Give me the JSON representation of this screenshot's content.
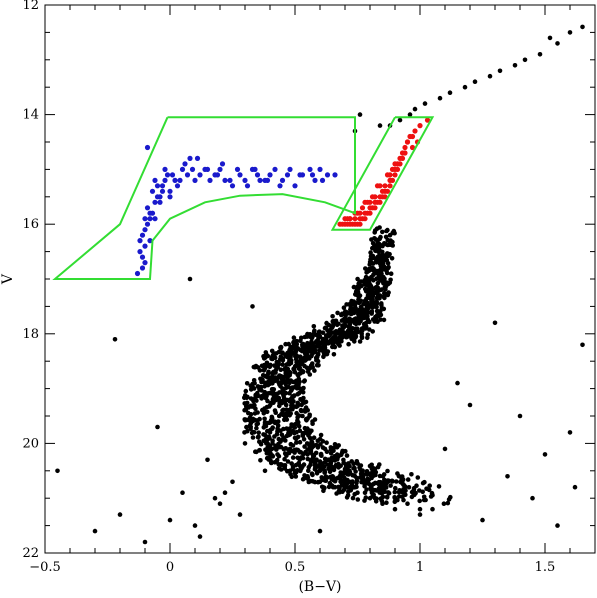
{
  "chart_data": {
    "type": "scatter",
    "title": "",
    "xlabel": "(B−V)",
    "ylabel": "V",
    "xlim": [
      -0.5,
      1.7
    ],
    "ylim": [
      22,
      12
    ],
    "y_inverted": true,
    "grid": false,
    "legend": "none",
    "x_major_ticks": [
      -0.5,
      0,
      0.5,
      1,
      1.5
    ],
    "x_tick_labels": [
      "−0.5",
      "0",
      "0.5",
      "1",
      "1.5"
    ],
    "y_major_ticks": [
      12,
      14,
      16,
      18,
      20,
      22
    ],
    "y_tick_labels": [
      "12",
      "14",
      "16",
      "18",
      "20",
      "22"
    ],
    "colors": {
      "field": "#000000",
      "horizontal_branch": "#1a1acc",
      "red_giant_branch": "#ee1111",
      "selection_box": "#33dd33"
    },
    "selection_regions": [
      {
        "name": "horizontal-branch-box",
        "outline": [
          [
            -0.01,
            14.05
          ],
          [
            0.74,
            14.05
          ],
          [
            0.74,
            15.8
          ],
          [
            0.62,
            15.6
          ],
          [
            0.45,
            15.45
          ],
          [
            0.28,
            15.48
          ],
          [
            0.14,
            15.6
          ],
          [
            0.0,
            15.9
          ],
          [
            -0.07,
            16.3
          ],
          [
            -0.08,
            17.0
          ],
          [
            -0.46,
            17.0
          ],
          [
            -0.2,
            16.0
          ],
          [
            -0.01,
            14.05
          ]
        ]
      },
      {
        "name": "red-giant-branch-box",
        "outline": [
          [
            0.9,
            14.05
          ],
          [
            1.05,
            14.05
          ],
          [
            0.8,
            16.1
          ],
          [
            0.65,
            16.1
          ],
          [
            0.9,
            14.05
          ]
        ]
      }
    ],
    "series": [
      {
        "name": "",
        "color_key": "horizontal_branch",
        "x": [
          -0.13,
          -0.11,
          -0.1,
          -0.12,
          -0.1,
          -0.09,
          -0.11,
          -0.08,
          -0.07,
          -0.09,
          -0.1,
          -0.06,
          -0.05,
          -0.08,
          -0.07,
          -0.05,
          -0.03,
          -0.04,
          -0.02,
          -0.06,
          -0.03,
          -0.01,
          0.0,
          0.02,
          -0.02,
          0.01,
          0.03,
          0.05,
          0.04,
          0.07,
          0.06,
          0.09,
          0.1,
          0.12,
          0.14,
          0.16,
          0.18,
          0.2,
          0.22,
          0.25,
          0.28,
          0.3,
          0.33,
          0.35,
          0.38,
          0.4,
          0.42,
          0.45,
          0.47,
          0.5,
          0.53,
          0.56,
          0.58,
          0.6,
          0.63,
          0.66,
          -0.12,
          -0.1,
          -0.08,
          -0.11,
          0.08,
          0.15,
          0.21,
          0.27,
          0.36,
          0.44,
          0.52,
          0.61,
          0.0,
          -0.04,
          0.11,
          0.19,
          0.31,
          0.39,
          0.48,
          0.57,
          -0.09,
          -0.06,
          0.24,
          0.34
        ],
        "y": [
          16.9,
          16.6,
          16.4,
          16.3,
          16.1,
          16.0,
          16.2,
          15.9,
          15.8,
          15.7,
          15.9,
          15.6,
          15.5,
          15.8,
          15.4,
          15.3,
          15.4,
          15.6,
          15.2,
          15.2,
          15.3,
          15.1,
          15.4,
          15.2,
          15.0,
          15.1,
          15.3,
          15.0,
          15.2,
          15.1,
          14.9,
          15.0,
          15.2,
          15.1,
          15.0,
          15.2,
          15.1,
          15.0,
          15.2,
          15.3,
          15.1,
          15.2,
          15.0,
          15.1,
          15.2,
          15.1,
          15.0,
          15.2,
          15.1,
          15.3,
          15.1,
          15.0,
          15.2,
          15.0,
          15.1,
          15.1,
          16.5,
          16.7,
          16.3,
          16.8,
          14.8,
          15.0,
          14.9,
          15.0,
          15.2,
          15.3,
          15.1,
          15.2,
          15.5,
          15.5,
          14.8,
          15.1,
          15.3,
          15.2,
          15.0,
          15.1,
          14.6,
          15.9,
          15.2,
          15.0
        ]
      },
      {
        "name": "",
        "color_key": "red_giant_branch",
        "x": [
          1.03,
          1.0,
          0.98,
          0.99,
          0.96,
          0.97,
          0.94,
          0.95,
          0.93,
          0.92,
          0.94,
          0.91,
          0.9,
          0.92,
          0.89,
          0.88,
          0.9,
          0.87,
          0.86,
          0.88,
          0.85,
          0.84,
          0.86,
          0.83,
          0.82,
          0.84,
          0.81,
          0.8,
          0.82,
          0.79,
          0.78,
          0.8,
          0.77,
          0.76,
          0.78,
          0.75,
          0.74,
          0.76,
          0.73,
          0.72,
          0.74,
          0.71,
          0.7,
          0.72,
          0.69,
          0.68,
          0.7,
          0.87,
          0.83,
          0.79,
          0.91,
          0.85,
          0.81,
          0.77,
          0.89,
          0.93,
          0.75,
          0.71,
          0.95,
          0.97,
          0.86,
          0.82,
          0.78,
          0.84,
          0.8,
          0.76,
          0.88,
          0.9,
          0.74,
          0.72
        ],
        "y": [
          14.1,
          14.2,
          14.3,
          14.5,
          14.4,
          14.6,
          14.7,
          14.5,
          14.8,
          14.9,
          14.6,
          15.0,
          15.1,
          14.8,
          15.2,
          15.3,
          15.0,
          15.4,
          15.5,
          15.2,
          15.5,
          15.6,
          15.4,
          15.6,
          15.7,
          15.5,
          15.7,
          15.8,
          15.6,
          15.8,
          15.9,
          15.7,
          15.9,
          16.0,
          15.8,
          16.0,
          16.0,
          15.9,
          16.0,
          16.0,
          15.9,
          16.0,
          16.0,
          15.9,
          16.0,
          16.0,
          15.9,
          15.1,
          15.3,
          15.6,
          14.9,
          15.4,
          15.5,
          15.7,
          15.0,
          14.7,
          15.8,
          15.9,
          14.5,
          14.4,
          15.3,
          15.5,
          15.6,
          15.3,
          15.6,
          15.8,
          15.1,
          14.9,
          15.8,
          15.9
        ]
      },
      {
        "name": "",
        "color_key": "field",
        "x": [
          1.65,
          1.6,
          1.55,
          1.52,
          1.48,
          1.42,
          1.38,
          1.32,
          1.28,
          1.22,
          1.18,
          1.12,
          1.08,
          1.02,
          0.98,
          0.96,
          0.92,
          0.88,
          0.84,
          0.76,
          0.74,
          0.88,
          0.85,
          0.83,
          0.81,
          0.8,
          0.79,
          0.78,
          0.77,
          0.76,
          0.75,
          0.73,
          0.7,
          0.66,
          0.62,
          0.58,
          0.55,
          0.52,
          0.5,
          0.47,
          0.45,
          0.43,
          0.42,
          0.41,
          0.4,
          0.41,
          0.43,
          0.46,
          0.5,
          0.55,
          0.6,
          0.66,
          0.72,
          0.78,
          0.85,
          0.9,
          0.95,
          1.0,
          0.4,
          0.45,
          0.5,
          0.55,
          0.6,
          0.65,
          0.7,
          0.75,
          0.8,
          0.85,
          0.52,
          0.57,
          0.62,
          0.48,
          0.44,
          0.58,
          0.68,
          0.74,
          0.82,
          0.63,
          0.53,
          0.36,
          0.38,
          0.3,
          0.25,
          0.2,
          0.15,
          0.1,
          0.05,
          0.0,
          -0.05,
          -0.1,
          -0.2,
          -0.3,
          -0.45,
          1.4,
          1.5,
          1.6,
          1.65,
          1.45,
          1.35,
          1.3,
          1.25,
          1.2,
          1.1,
          1.05,
          1.15,
          1.55,
          1.62,
          0.33,
          0.28,
          0.22,
          0.18,
          0.12,
          0.08,
          -0.22,
          0.6,
          0.9,
          1.0
        ],
        "y": [
          12.4,
          12.5,
          12.7,
          12.6,
          12.9,
          13.0,
          13.1,
          13.2,
          13.3,
          13.4,
          13.5,
          13.6,
          13.7,
          13.8,
          13.9,
          14.0,
          14.1,
          14.2,
          14.2,
          14.0,
          14.3,
          16.2,
          16.4,
          16.6,
          16.8,
          17.0,
          17.2,
          17.4,
          17.6,
          17.7,
          17.8,
          17.9,
          18.0,
          18.1,
          18.2,
          18.3,
          18.4,
          18.5,
          18.6,
          18.8,
          19.0,
          19.2,
          19.4,
          19.6,
          19.8,
          20.0,
          20.2,
          20.4,
          20.5,
          20.6,
          20.7,
          20.8,
          20.8,
          20.9,
          20.9,
          21.0,
          21.1,
          21.2,
          18.8,
          19.4,
          19.9,
          20.2,
          20.5,
          20.6,
          20.7,
          20.9,
          21.0,
          21.1,
          19.0,
          19.6,
          20.1,
          19.2,
          18.9,
          20.4,
          20.6,
          20.8,
          21.0,
          20.3,
          19.5,
          19.0,
          20.5,
          20.0,
          20.7,
          21.1,
          20.3,
          21.5,
          20.9,
          21.4,
          19.7,
          21.8,
          21.3,
          21.6,
          20.5,
          19.5,
          20.2,
          19.8,
          18.2,
          21.0,
          20.6,
          17.8,
          21.4,
          19.3,
          20.1,
          21.2,
          18.9,
          21.5,
          20.8,
          17.5,
          21.3,
          20.9,
          21.0,
          21.7,
          17.0,
          18.1,
          21.6,
          21.2,
          21.3
        ]
      }
    ]
  }
}
